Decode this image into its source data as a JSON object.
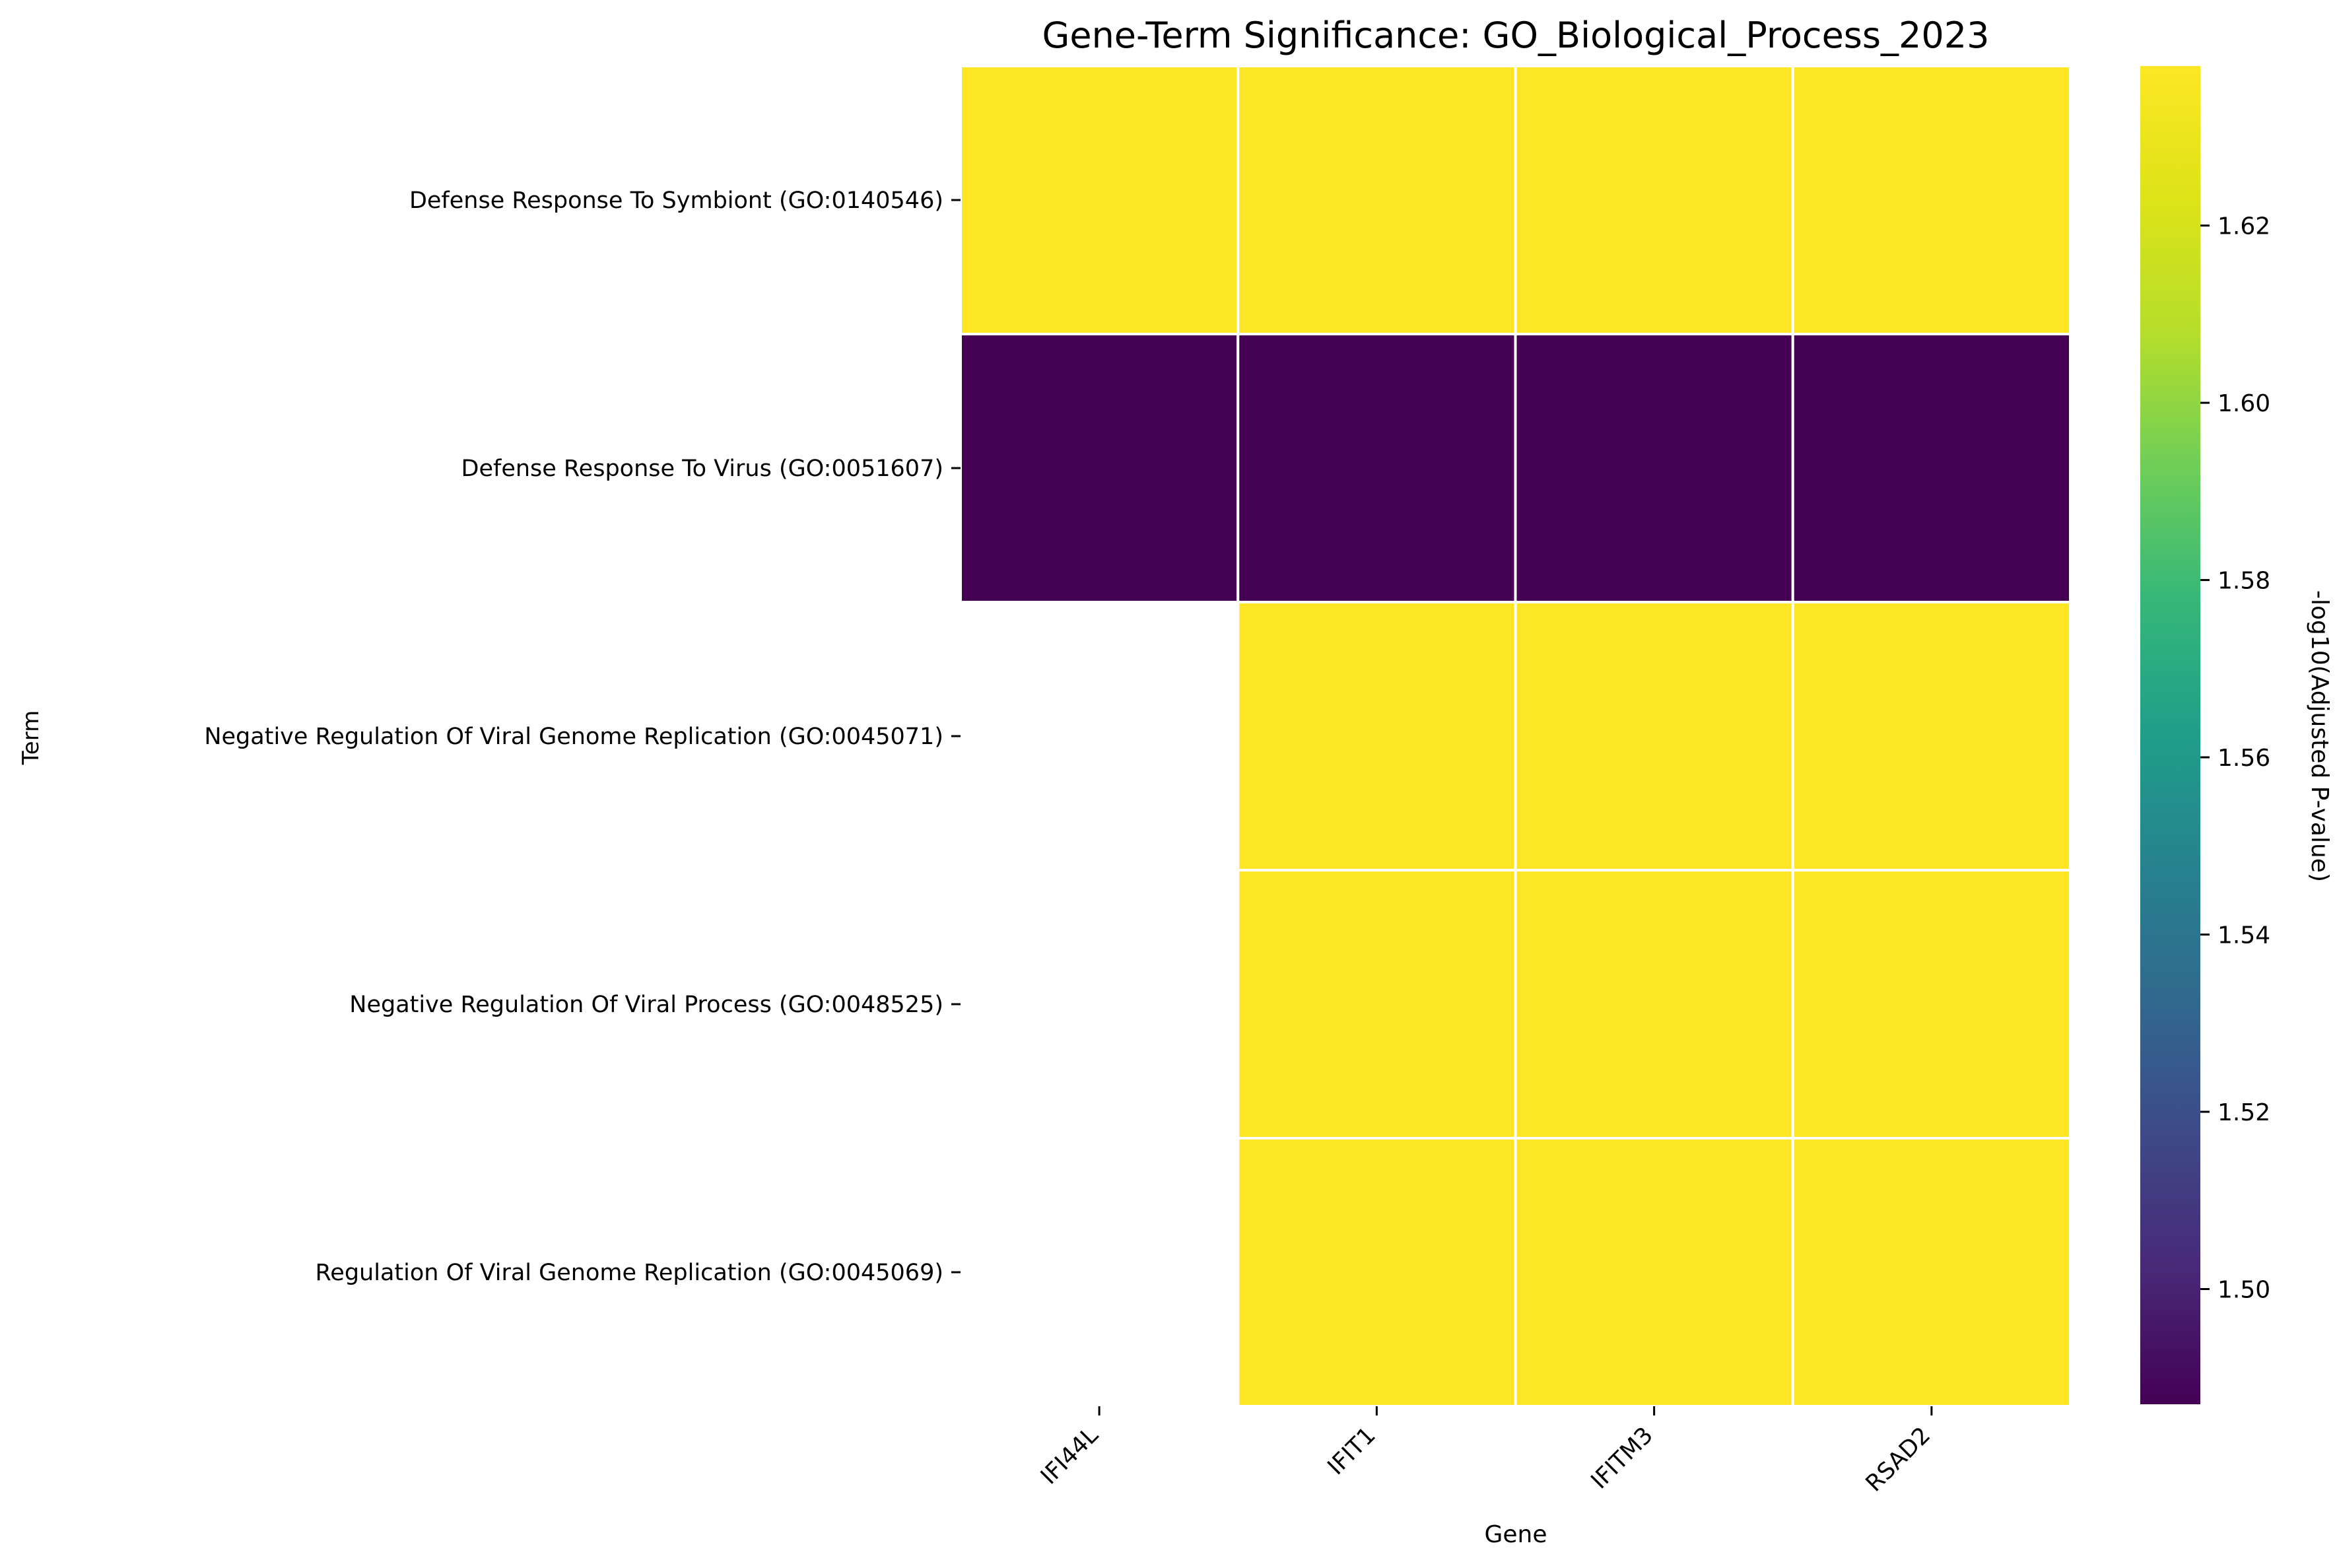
{
  "chart_data": {
    "type": "heatmap",
    "title": "Gene-Term Significance: GO_Biological_Process_2023",
    "xlabel": "Gene",
    "ylabel": "Term",
    "x_categories": [
      "IFI44L",
      "IFIT1",
      "IFITM3",
      "RSAD2"
    ],
    "y_categories": [
      "Defense Response To Symbiont (GO:0140546)",
      "Defense Response To Virus (GO:0051607)",
      "Negative Regulation Of Viral Genome Replication (GO:0045071)",
      "Negative Regulation Of Viral Process (GO:0048525)",
      "Regulation Of Viral Genome Replication (GO:0045069)"
    ],
    "values": [
      [
        1.638,
        1.638,
        1.638,
        1.638
      ],
      [
        1.487,
        1.487,
        1.487,
        1.487
      ],
      [
        null,
        1.638,
        1.638,
        1.638
      ],
      [
        null,
        1.638,
        1.638,
        1.638
      ],
      [
        null,
        1.638,
        1.638,
        1.638
      ]
    ],
    "colorbar": {
      "label": "-log10(Adjusted P-value)",
      "colormap": "viridis",
      "range": [
        1.487,
        1.638
      ],
      "ticks": [
        1.5,
        1.52,
        1.54,
        1.56,
        1.58,
        1.6,
        1.62
      ],
      "tick_labels": [
        "1.50",
        "1.52",
        "1.54",
        "1.56",
        "1.58",
        "1.60",
        "1.62"
      ]
    },
    "missing_cells": "blank",
    "grid": false
  }
}
